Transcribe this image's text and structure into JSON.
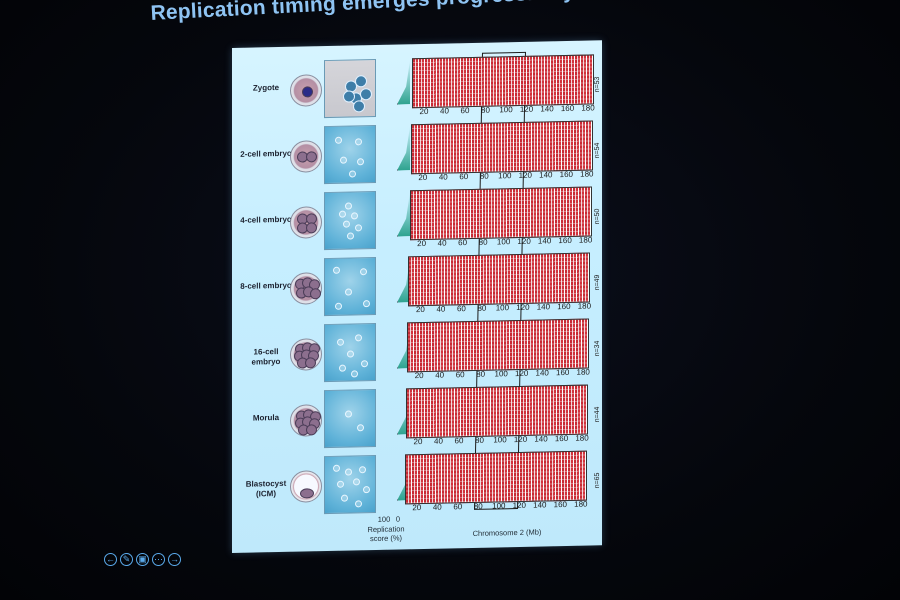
{
  "slide": {
    "title": "Replication timing emerges progressively during development"
  },
  "figure": {
    "stages": [
      {
        "label": "Zygote",
        "n": "n=53"
      },
      {
        "label": "2-cell embryo",
        "n": "n=54"
      },
      {
        "label": "4-cell embryo",
        "n": "n=50"
      },
      {
        "label": "8-cell embryo",
        "n": "n=49"
      },
      {
        "label": "16-cell embryo",
        "n": "n=34"
      },
      {
        "label": "Morula",
        "n": "n=44"
      },
      {
        "label": "Blastocyst (ICM)",
        "n": "n=65"
      }
    ],
    "x_ticks": [
      "20",
      "40",
      "60",
      "80",
      "100",
      "120",
      "140",
      "160",
      "180"
    ],
    "x_axis_label": "Chromosome 2 (Mb)",
    "score_ticks": [
      "100",
      "0"
    ],
    "score_label": "Replication score (%)",
    "heatmap_colors": {
      "replicated": "#c8212b",
      "unreplicated": "#ffffff"
    }
  },
  "controls": {
    "icons": [
      "back-icon",
      "pen-icon",
      "slides-icon",
      "more-icon",
      "forward-icon"
    ],
    "glyphs": [
      "←",
      "✎",
      "▣",
      "⋯",
      "→"
    ]
  }
}
